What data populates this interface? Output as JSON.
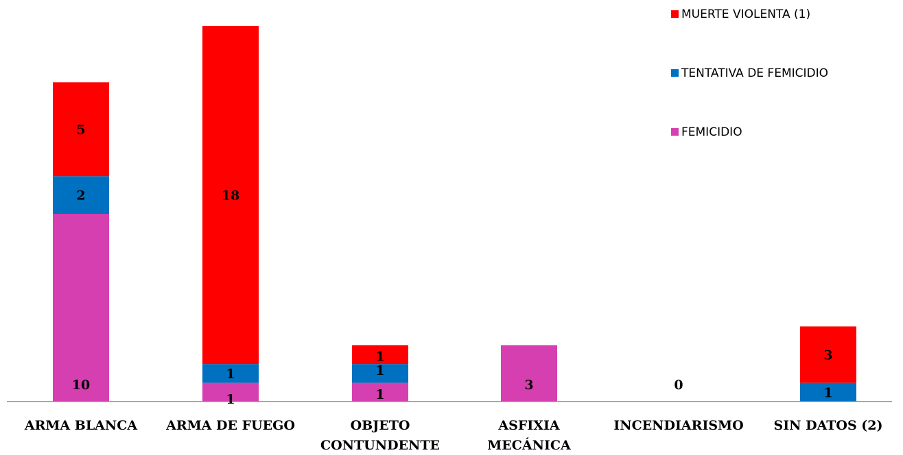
{
  "chart_data": {
    "type": "bar",
    "stacked": true,
    "categories": [
      [
        "ARMA BLANCA"
      ],
      [
        "ARMA DE FUEGO"
      ],
      [
        "OBJETO",
        "CONTUNDENTE"
      ],
      [
        "ASFIXIA",
        "MECÁNICA"
      ],
      [
        "INCENDIARISMO"
      ],
      [
        "SIN DATOS (2)"
      ]
    ],
    "series": [
      {
        "name": "FEMICIDIO",
        "color": "#D63FB0",
        "values": [
          10,
          1,
          1,
          3,
          0,
          0
        ]
      },
      {
        "name": "TENTATIVA DE FEMICIDIO",
        "color": "#0070C0",
        "values": [
          2,
          1,
          1,
          0,
          0,
          1
        ]
      },
      {
        "name": "MUERTE VIOLENTA (1)",
        "color": "#FF0000",
        "values": [
          5,
          18,
          1,
          0,
          0,
          3
        ]
      }
    ],
    "data_labels": [
      [
        "10",
        "2",
        "5"
      ],
      [
        "1",
        "1",
        "18"
      ],
      [
        "1",
        "1",
        "1"
      ],
      [
        "3",
        "",
        ""
      ],
      [
        "0",
        "",
        ""
      ],
      [
        "",
        "1",
        "3"
      ]
    ],
    "legend": {
      "position": "top-right",
      "order": [
        "MUERTE VIOLENTA (1)",
        "TENTATIVA DE FEMICIDIO",
        "FEMICIDIO"
      ]
    },
    "ylim": [
      0,
      20.5
    ],
    "grid": false,
    "title": "",
    "xlabel": "",
    "ylabel": ""
  }
}
